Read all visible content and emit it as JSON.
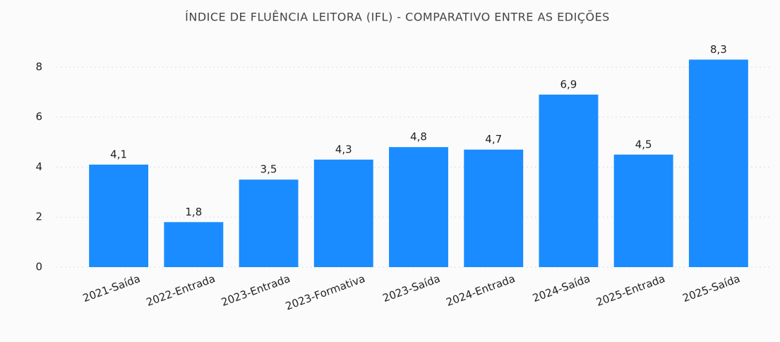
{
  "chart_data": {
    "type": "bar",
    "title": "ÍNDICE DE FLUÊNCIA LEITORA (IFL) - COMPARATIVO ENTRE AS EDIÇÕES",
    "categories": [
      "2021-Saída",
      "2022-Entrada",
      "2023-Entrada",
      "2023-Formativa",
      "2023-Saída",
      "2024-Entrada",
      "2024-Saída",
      "2025-Entrada",
      "2025-Saída"
    ],
    "values": [
      4.1,
      1.8,
      3.5,
      4.3,
      4.8,
      4.7,
      6.9,
      4.5,
      8.3
    ],
    "value_labels": [
      "4,1",
      "1,8",
      "3,5",
      "4,3",
      "4,8",
      "4,7",
      "6,9",
      "4,5",
      "8,3"
    ],
    "color": "#1a8cff",
    "ylim": [
      0,
      9
    ],
    "yticks": [
      0,
      2,
      4,
      6,
      8
    ],
    "grid": true
  }
}
